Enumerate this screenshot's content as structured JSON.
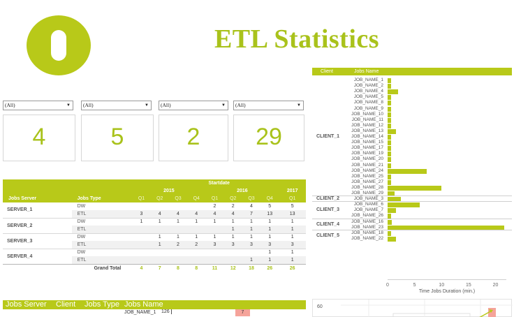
{
  "header": {
    "title": "ETL  Statistics"
  },
  "colors": {
    "accent": "#b8c919",
    "title": "#a9c21b",
    "highlight": "#f5a39a"
  },
  "filters": [
    {
      "value": "(All)"
    },
    {
      "value": "(All)"
    },
    {
      "value": "(All)"
    },
    {
      "value": "(All)"
    }
  ],
  "kpis": [
    {
      "value": "4"
    },
    {
      "value": "5"
    },
    {
      "value": "2"
    },
    {
      "value": "29"
    }
  ],
  "pivot": {
    "header_top": "Startdate",
    "col_server": "Jobs Server",
    "col_type": "Jobs Type",
    "years": [
      "2015",
      "2016",
      "2017"
    ],
    "quarters": [
      "Q1",
      "Q2",
      "Q3",
      "Q4",
      "Q1",
      "Q2",
      "Q3",
      "Q4",
      "Q1"
    ],
    "rows": [
      {
        "server": "SERVER_1",
        "type": "DW",
        "values": [
          "",
          "",
          "",
          "",
          "2",
          "2",
          "4",
          "5",
          "5"
        ]
      },
      {
        "server": "",
        "type": "ETL",
        "values": [
          "3",
          "4",
          "4",
          "4",
          "4",
          "4",
          "7",
          "13",
          "13"
        ]
      },
      {
        "server": "SERVER_2",
        "type": "DW",
        "values": [
          "1",
          "1",
          "1",
          "1",
          "1",
          "1",
          "1",
          "1",
          "1"
        ]
      },
      {
        "server": "",
        "type": "ETL",
        "values": [
          "",
          "",
          "",
          "",
          "",
          "1",
          "1",
          "1",
          "1"
        ]
      },
      {
        "server": "SERVER_3",
        "type": "DW",
        "values": [
          "",
          "1",
          "1",
          "1",
          "1",
          "1",
          "1",
          "1",
          "1"
        ]
      },
      {
        "server": "",
        "type": "ETL",
        "values": [
          "",
          "1",
          "2",
          "2",
          "3",
          "3",
          "3",
          "3",
          "3"
        ]
      },
      {
        "server": "SERVER_4",
        "type": "DW",
        "values": [
          "",
          "",
          "",
          "",
          "",
          "",
          "",
          "1",
          "1"
        ]
      },
      {
        "server": "",
        "type": "ETL",
        "values": [
          "",
          "",
          "",
          "",
          "",
          "",
          "1",
          "1",
          "1"
        ]
      }
    ],
    "grand_total_label": "Grand Total",
    "grand_total": [
      "4",
      "7",
      "8",
      "8",
      "11",
      "12",
      "18",
      "26",
      "26"
    ]
  },
  "jobs_table": {
    "headers": [
      "Jobs Server",
      "Client",
      "Jobs Type",
      "Jobs Name"
    ],
    "first_row": {
      "job": "JOB_NAME_1",
      "value": "126",
      "bar_value": "7"
    }
  },
  "chart_data": {
    "type": "bar",
    "orientation": "horizontal",
    "header_client": "Client",
    "header_job": "Jobs Name",
    "xlabel": "Time Jobs Duration (min.)",
    "xlim": [
      0,
      22
    ],
    "xticks": [
      "0",
      "5",
      "10",
      "15",
      "20"
    ],
    "groups": [
      {
        "client": "CLIENT_1",
        "jobs": [
          {
            "name": "JOB_NAME_1",
            "value": 0.6
          },
          {
            "name": "JOB_NAME_2",
            "value": 0.6
          },
          {
            "name": "JOB_NAME_4",
            "value": 2.0
          },
          {
            "name": "JOB_NAME_5",
            "value": 0.6
          },
          {
            "name": "JOB_NAME_8",
            "value": 0.6
          },
          {
            "name": "JOB_NAME_9",
            "value": 0.6
          },
          {
            "name": "JOB_NAME_10",
            "value": 0.6
          },
          {
            "name": "JOB_NAME_11",
            "value": 0.6
          },
          {
            "name": "JOB_NAME_12",
            "value": 0.6
          },
          {
            "name": "JOB_NAME_13",
            "value": 1.6
          },
          {
            "name": "JOB_NAME_14",
            "value": 0.6
          },
          {
            "name": "JOB_NAME_15",
            "value": 0.6
          },
          {
            "name": "JOB_NAME_17",
            "value": 0.6
          },
          {
            "name": "JOB_NAME_19",
            "value": 0.6
          },
          {
            "name": "JOB_NAME_20",
            "value": 0.6
          },
          {
            "name": "JOB_NAME_21",
            "value": 0.6
          },
          {
            "name": "JOB_NAME_24",
            "value": 7.2
          },
          {
            "name": "JOB_NAME_25",
            "value": 0.6
          },
          {
            "name": "JOB_NAME_27",
            "value": 0.6
          },
          {
            "name": "JOB_NAME_28",
            "value": 10.0
          },
          {
            "name": "JOB_NAME_29",
            "value": 1.3
          }
        ]
      },
      {
        "client": "CLIENT_2",
        "jobs": [
          {
            "name": "JOB_NAME_3",
            "value": 2.4
          }
        ]
      },
      {
        "client": "CLIENT_3",
        "jobs": [
          {
            "name": "JOB_NAME_6",
            "value": 6.0
          },
          {
            "name": "JOB_NAME_7",
            "value": 1.6
          },
          {
            "name": "JOB_NAME_26",
            "value": 0.6
          }
        ]
      },
      {
        "client": "CLIENT_4",
        "jobs": [
          {
            "name": "JOB_NAME_16",
            "value": 0.8
          },
          {
            "name": "JOB_NAME_23",
            "value": 21.6
          }
        ]
      },
      {
        "client": "CLIENT_5",
        "jobs": [
          {
            "name": "JOB_NAME_18",
            "value": 0.6
          },
          {
            "name": "JOB_NAME_22",
            "value": 1.6
          }
        ]
      }
    ]
  },
  "mini_chart": {
    "y_tick": "60"
  }
}
